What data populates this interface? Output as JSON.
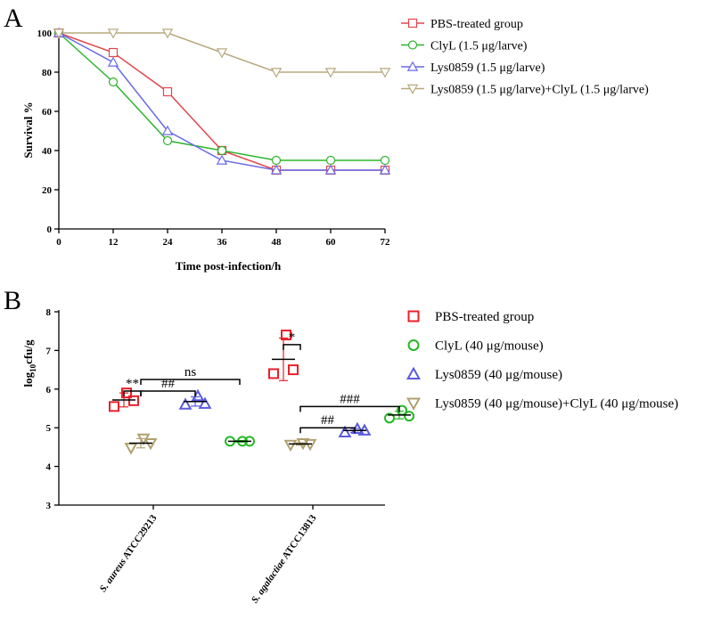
{
  "panels": [
    {
      "letter": "A",
      "chart_data": {
        "type": "line",
        "title": "",
        "xlabel": "Time post-infection/h",
        "ylabel": "Survival %",
        "x": [
          0,
          12,
          24,
          36,
          48,
          60,
          72
        ],
        "xlim": [
          0,
          72
        ],
        "ylim": [
          0,
          100
        ],
        "yticks": [
          0,
          20,
          40,
          60,
          80,
          100
        ],
        "grid": false,
        "legend_position": "right",
        "series": [
          {
            "name": "PBS-treated group",
            "marker": "square",
            "color": "#e0474c",
            "values": [
              100,
              90,
              70,
              40,
              30,
              30,
              30
            ]
          },
          {
            "name": "ClyL (1.5 μg/larve)",
            "marker": "circle",
            "color": "#2db52d",
            "values": [
              100,
              75,
              45,
              40,
              35,
              35,
              35
            ]
          },
          {
            "name": "Lys0859 (1.5 μg/larve)",
            "marker": "triangle-up",
            "color": "#6a6ae8",
            "values": [
              100,
              85,
              50,
              35,
              30,
              30,
              30
            ]
          },
          {
            "name": "Lys0859 (1.5 μg/larve)+ClyL (1.5 μg/larve)",
            "marker": "triangle-down",
            "color": "#b8a87e",
            "values": [
              100,
              100,
              100,
              90,
              80,
              80,
              80
            ]
          }
        ]
      }
    },
    {
      "letter": "B",
      "chart_data": {
        "type": "scatter",
        "title": "",
        "xlabel": "",
        "ylabel_parts": [
          "log",
          "10",
          "cfu/g"
        ],
        "ylim": [
          3,
          8
        ],
        "yticks": [
          3,
          4,
          5,
          6,
          7,
          8
        ],
        "grid": false,
        "legend_position": "right",
        "categories": [
          {
            "species": "S. aureus",
            "strain": " ATCC29213"
          },
          {
            "species": "S. agalactiae",
            "strain": " ATCC13813"
          }
        ],
        "series": [
          {
            "name": "PBS-treated group",
            "marker": "square",
            "color": "#e8202a",
            "points": [
              [
                5.55,
                5.9,
                5.7
              ],
              [
                6.4,
                7.4,
                6.5
              ]
            ],
            "mean": [
              5.72,
              6.77
            ],
            "sd": [
              0.18,
              0.55
            ]
          },
          {
            "name": "ClyL (40 μg/mouse)",
            "marker": "circle",
            "color": "#22b822",
            "points": [
              [
                4.65,
                4.65,
                4.65
              ],
              [
                5.25,
                5.45,
                5.3
              ]
            ],
            "mean": [
              4.65,
              5.33
            ],
            "sd": [
              0.02,
              0.1
            ]
          },
          {
            "name": "Lys0859 (40 μg/mouse)",
            "marker": "triangle-up",
            "color": "#5a5ae0",
            "points": [
              [
                5.6,
                5.82,
                5.62
              ],
              [
                4.88,
                4.97,
                4.93
              ]
            ],
            "mean": [
              5.68,
              4.93
            ],
            "sd": [
              0.12,
              0.05
            ]
          },
          {
            "name": "Lys0859 (40 μg/mouse)+ClyL (40 μg/mouse)",
            "marker": "triangle-down",
            "color": "#b0a070",
            "points": [
              [
                4.48,
                4.72,
                4.6
              ],
              [
                4.56,
                4.6,
                4.58
              ]
            ],
            "mean": [
              4.6,
              4.58
            ],
            "sd": [
              0.12,
              0.03
            ]
          }
        ],
        "annotations": [
          {
            "label": "**",
            "category": 0,
            "from": 0,
            "to": 3,
            "y": 5.95
          },
          {
            "label": "##",
            "category": 0,
            "from": 3,
            "to": 2,
            "y": 5.95
          },
          {
            "label": "ns",
            "category": 0,
            "from": 3,
            "to": 1,
            "y": 6.25
          },
          {
            "label": "*",
            "category": 1,
            "from": 0,
            "to": 3,
            "y": 7.15
          },
          {
            "label": "##",
            "category": 1,
            "from": 3,
            "to": 2,
            "y": 5.0
          },
          {
            "label": "###",
            "category": 1,
            "from": 3,
            "to": 1,
            "y": 5.55
          }
        ]
      }
    }
  ]
}
